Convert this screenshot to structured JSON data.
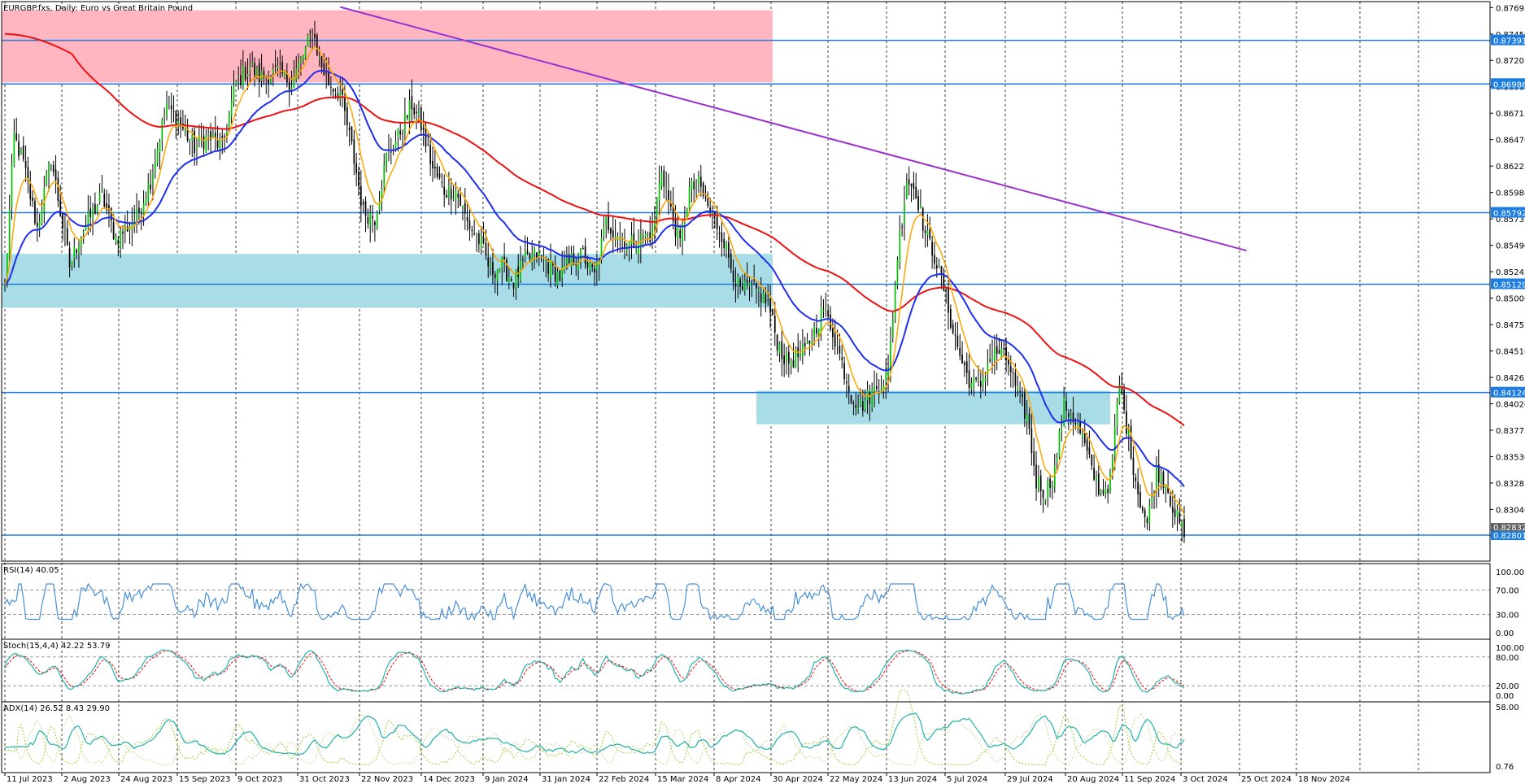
{
  "window": {
    "title": "EURGBP.fxs, Daily:  Euro vs Great Britain Pound"
  },
  "colors": {
    "bull_body": "#00c000",
    "bear_body": "#000000",
    "ema_fast": "#ffa500",
    "ema_mid": "#1f2ef0",
    "ema_slow": "#ee1111",
    "trendline": "#9a30d0",
    "level": "#1e7ee0",
    "supply_zone": "#ffb6c1",
    "demand_zone": "#a8dce6",
    "rsi": "#4a90d9",
    "stoch_main": "#20b2aa",
    "stoch_signal": "#ff0000",
    "adx": "#20b2aa",
    "di_plus": "#9acd32",
    "di_minus": "#c8d88a"
  },
  "chart_data": {
    "type": "candlestick",
    "symbol": "EURGBP.fxs",
    "timeframe": "Daily",
    "description": "Euro vs Great Britain Pound",
    "ylim": [
      0.8256,
      0.8775
    ],
    "price_ticks": [
      "0.87695",
      "0.87450",
      "0.87205",
      "0.86960",
      "0.86715",
      "0.86470",
      "0.86225",
      "0.85980",
      "0.85735",
      "0.85490",
      "0.85245",
      "0.85000",
      "0.84755",
      "0.84510",
      "0.84265",
      "0.84020",
      "0.83775",
      "0.83530",
      "0.83285",
      "0.83040",
      "0.82795"
    ],
    "x_labels": [
      "11 Jul 2023",
      "2 Aug 2023",
      "24 Aug 2023",
      "15 Sep 2023",
      "9 Oct 2023",
      "31 Oct 2023",
      "22 Nov 2023",
      "14 Dec 2023",
      "9 Jan 2024",
      "31 Jan 2024",
      "22 Feb 2024",
      "15 Mar 2024",
      "8 Apr 2024",
      "30 Apr 2024",
      "22 May 2024",
      "13 Jun 2024",
      "5 Jul 2024",
      "29 Jul 2024",
      "20 Aug 2024",
      "11 Sep 2024",
      "3 Oct 2024",
      "25 Oct 2024",
      "18 Nov 2024"
    ],
    "levels": [
      {
        "value": 0.87391,
        "label": "0.87391"
      },
      {
        "value": 0.86986,
        "label": "0.86986"
      },
      {
        "value": 0.85792,
        "label": "0.85792"
      },
      {
        "value": 0.85129,
        "label": "0.85129"
      },
      {
        "value": 0.84124,
        "label": "0.84124"
      },
      {
        "value": 0.82801,
        "label": "0.82801"
      }
    ],
    "last_price_label": "0.82832",
    "zones": [
      {
        "kind": "supply",
        "from": 0,
        "to": 332,
        "high": 0.8767,
        "low": 0.87
      },
      {
        "kind": "demand",
        "from": 0,
        "to": 332,
        "high": 0.8541,
        "low": 0.8491
      },
      {
        "kind": "demand",
        "from": 325,
        "to": 478,
        "high": 0.8414,
        "low": 0.8383
      }
    ],
    "trendline": {
      "x1": 145,
      "y1": 0.877,
      "x2": 537,
      "y2": 0.8544
    },
    "anchors": [
      [
        0,
        0.851
      ],
      [
        4,
        0.865
      ],
      [
        8,
        0.8625
      ],
      [
        14,
        0.8565
      ],
      [
        20,
        0.863
      ],
      [
        28,
        0.853
      ],
      [
        33,
        0.856
      ],
      [
        42,
        0.8595
      ],
      [
        48,
        0.8555
      ],
      [
        57,
        0.8575
      ],
      [
        63,
        0.861
      ],
      [
        70,
        0.868
      ],
      [
        76,
        0.866
      ],
      [
        82,
        0.864
      ],
      [
        88,
        0.865
      ],
      [
        94,
        0.864
      ],
      [
        100,
        0.87
      ],
      [
        106,
        0.8715
      ],
      [
        110,
        0.8705
      ],
      [
        118,
        0.871
      ],
      [
        124,
        0.87
      ],
      [
        130,
        0.873
      ],
      [
        133,
        0.875
      ],
      [
        136,
        0.872
      ],
      [
        140,
        0.87
      ],
      [
        145,
        0.869
      ],
      [
        150,
        0.864
      ],
      [
        155,
        0.858
      ],
      [
        160,
        0.8575
      ],
      [
        165,
        0.863
      ],
      [
        170,
        0.865
      ],
      [
        176,
        0.868
      ],
      [
        180,
        0.866
      ],
      [
        185,
        0.862
      ],
      [
        190,
        0.86
      ],
      [
        195,
        0.86
      ],
      [
        200,
        0.857
      ],
      [
        206,
        0.855
      ],
      [
        210,
        0.8525
      ],
      [
        215,
        0.853
      ],
      [
        220,
        0.8515
      ],
      [
        225,
        0.8535
      ],
      [
        230,
        0.854
      ],
      [
        235,
        0.853
      ],
      [
        240,
        0.852
      ],
      [
        245,
        0.8535
      ],
      [
        250,
        0.854
      ],
      [
        255,
        0.852
      ],
      [
        260,
        0.857
      ],
      [
        265,
        0.856
      ],
      [
        270,
        0.855
      ],
      [
        275,
        0.8555
      ],
      [
        280,
        0.856
      ],
      [
        284,
        0.862
      ],
      [
        288,
        0.858
      ],
      [
        292,
        0.855
      ],
      [
        296,
        0.86
      ],
      [
        300,
        0.8605
      ],
      [
        305,
        0.858
      ],
      [
        310,
        0.856
      ],
      [
        314,
        0.853
      ],
      [
        318,
        0.8505
      ],
      [
        322,
        0.851
      ],
      [
        326,
        0.8505
      ],
      [
        330,
        0.8495
      ],
      [
        334,
        0.846
      ],
      [
        338,
        0.844
      ],
      [
        342,
        0.8445
      ],
      [
        346,
        0.845
      ],
      [
        350,
        0.847
      ],
      [
        354,
        0.849
      ],
      [
        358,
        0.847
      ],
      [
        362,
        0.844
      ],
      [
        366,
        0.841
      ],
      [
        370,
        0.84
      ],
      [
        374,
        0.841
      ],
      [
        378,
        0.842
      ],
      [
        382,
        0.843
      ],
      [
        386,
        0.854
      ],
      [
        390,
        0.861
      ],
      [
        394,
        0.86
      ],
      [
        398,
        0.856
      ],
      [
        402,
        0.854
      ],
      [
        406,
        0.851
      ],
      [
        410,
        0.847
      ],
      [
        414,
        0.844
      ],
      [
        418,
        0.842
      ],
      [
        422,
        0.842
      ],
      [
        426,
        0.8445
      ],
      [
        430,
        0.845
      ],
      [
        434,
        0.844
      ],
      [
        438,
        0.841
      ],
      [
        442,
        0.839
      ],
      [
        446,
        0.833
      ],
      [
        450,
        0.832
      ],
      [
        454,
        0.834
      ],
      [
        458,
        0.84
      ],
      [
        462,
        0.839
      ],
      [
        466,
        0.837
      ],
      [
        470,
        0.834
      ],
      [
        474,
        0.832
      ],
      [
        478,
        0.833
      ],
      [
        482,
        0.842
      ],
      [
        486,
        0.837
      ],
      [
        490,
        0.832
      ],
      [
        494,
        0.829
      ],
      [
        498,
        0.834
      ],
      [
        502,
        0.833
      ],
      [
        506,
        0.83
      ],
      [
        510,
        0.828
      ]
    ],
    "indicators": {
      "rsi": {
        "label": "RSI(14) 40.05",
        "levels": [
          "100.00",
          "70.00",
          "30.00",
          "0.00"
        ]
      },
      "stoch": {
        "label": "Stoch(15,4,4) 42.22 53.79",
        "levels": [
          "100.00",
          "80.00",
          "20.00",
          "0.00"
        ]
      },
      "adx": {
        "label": "ADX(14) 26.52 8.43 29.90",
        "levels": [
          "58.00",
          "0.76"
        ]
      }
    }
  }
}
